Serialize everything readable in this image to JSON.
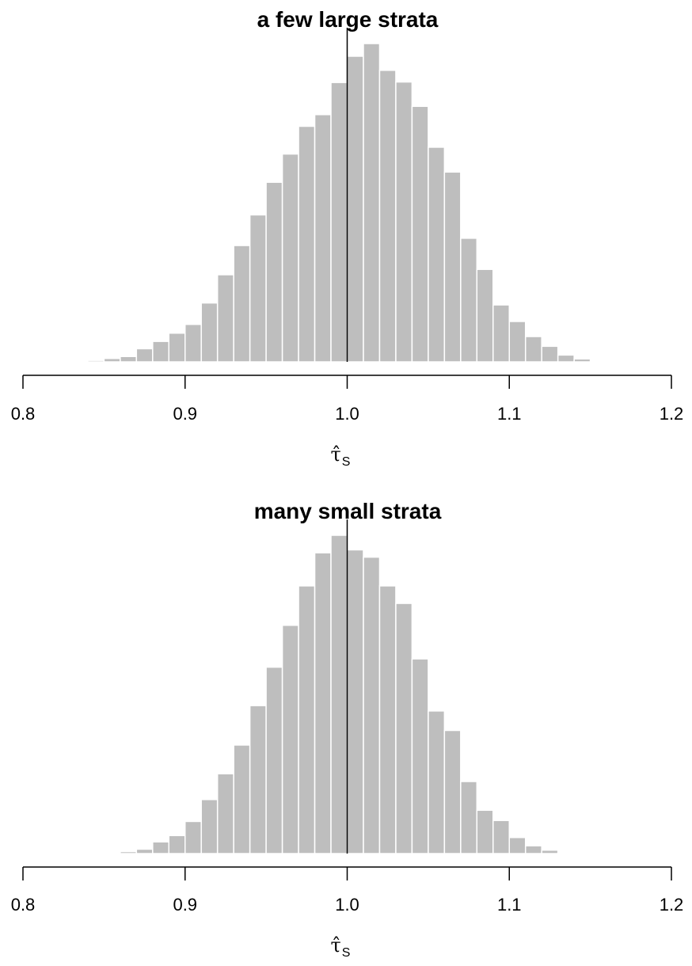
{
  "chart_data": [
    {
      "type": "bar",
      "title": "a few large strata",
      "xlabel": "τ̂",
      "xlabel_sub": "S",
      "xlim": [
        0.8,
        1.2
      ],
      "xticks": [
        0.8,
        0.9,
        1.0,
        1.1,
        1.2
      ],
      "xtick_labels": [
        "0.8",
        "0.9",
        "1.0",
        "1.1",
        "1.2"
      ],
      "reference_line_x": 1.0,
      "bin_width": 0.01,
      "bin_start": 0.84,
      "values": [
        3,
        7,
        11,
        27,
        42,
        59,
        77,
        121,
        179,
        239,
        302,
        369,
        427,
        484,
        508,
        574,
        628,
        654,
        599,
        575,
        525,
        441,
        390,
        254,
        190,
        117,
        83,
        52,
        32,
        14,
        6,
        2,
        1
      ]
    },
    {
      "type": "bar",
      "title": "many small strata",
      "xlabel": "τ̂",
      "xlabel_sub": "S",
      "xlim": [
        0.8,
        1.2
      ],
      "xticks": [
        0.8,
        0.9,
        1.0,
        1.1,
        1.2
      ],
      "xtick_labels": [
        "0.8",
        "0.9",
        "1.0",
        "1.1",
        "1.2"
      ],
      "reference_line_x": 1.0,
      "bin_width": 0.01,
      "bin_start": 0.85,
      "values": [
        1,
        4,
        9,
        24,
        37,
        66,
        111,
        164,
        223,
        304,
        383,
        469,
        550,
        618,
        654,
        624,
        609,
        550,
        514,
        400,
        293,
        253,
        148,
        89,
        68,
        33,
        16,
        7,
        2
      ]
    }
  ]
}
